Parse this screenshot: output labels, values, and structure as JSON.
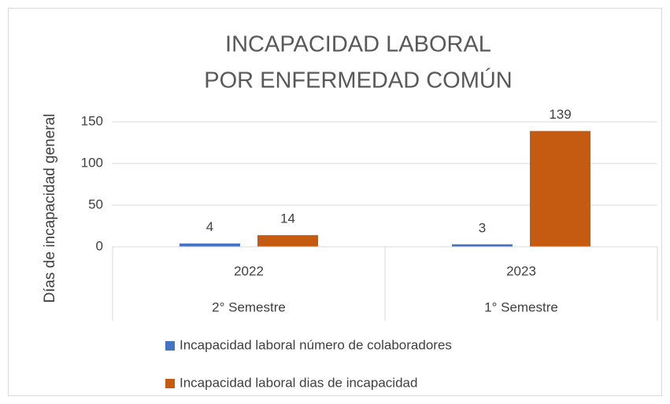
{
  "chart_data": {
    "type": "bar",
    "title": [
      "INCAPACIDAD LABORAL",
      "POR ENFERMEDAD COMÚN"
    ],
    "y_label": "Días de incapacidad general",
    "categories": [
      "2022",
      "2023"
    ],
    "category_groups": [
      "2° Semestre",
      "1° Semestre"
    ],
    "series": [
      {
        "name": "Incapacidad laboral número de colaboradores",
        "color": "#4472c4",
        "values": [
          4,
          3
        ]
      },
      {
        "name": "Incapacidad laboral dias de incapacidad",
        "color": "#c55a11",
        "values": [
          14,
          139
        ]
      }
    ],
    "ylim": [
      0,
      150
    ],
    "yticks": [
      0,
      50,
      100,
      150
    ],
    "grid": true,
    "legend": "bottom"
  }
}
